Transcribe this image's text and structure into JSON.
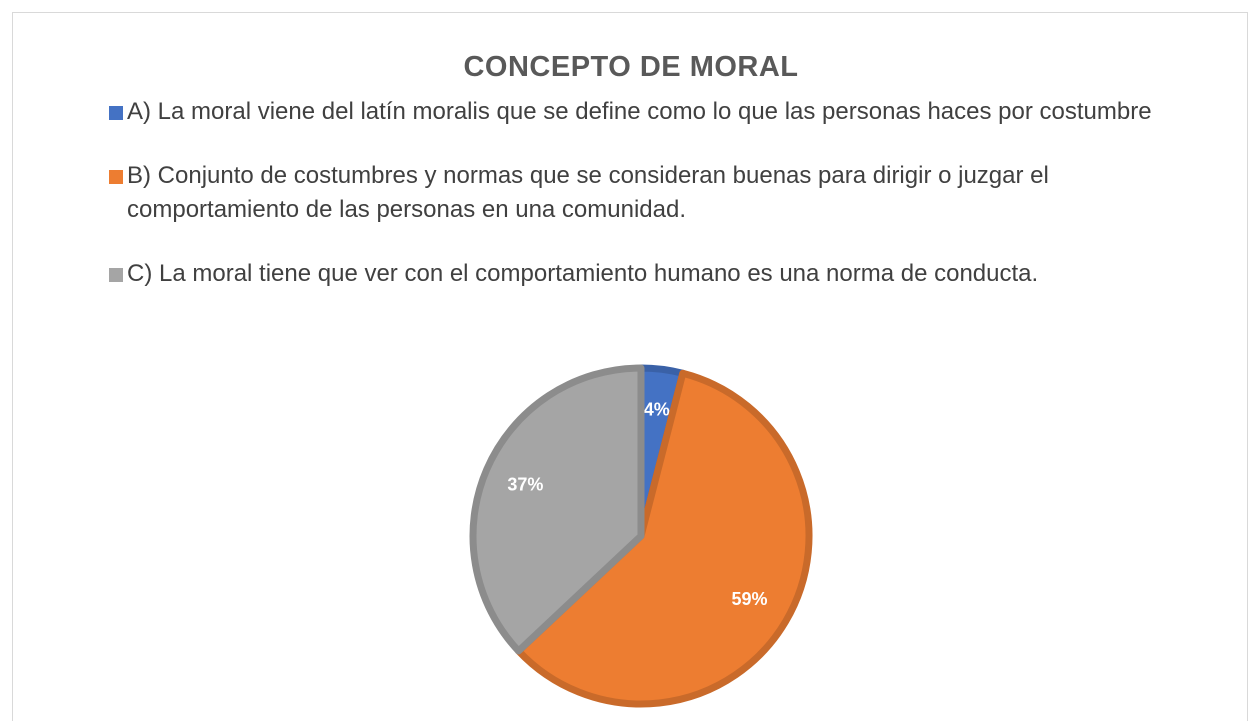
{
  "chart_data": {
    "type": "pie",
    "title": "CONCEPTO DE MORAL",
    "categories": [
      "A) La moral viene del latín moralis  que se define como lo que las personas haces por costumbre",
      "B) Conjunto de costumbres y normas que se consideran buenas para dirigir o juzgar el comportamiento de las personas en una comunidad.",
      "C) La moral tiene que ver con el comportamiento humano  es una norma de conducta."
    ],
    "values": [
      4,
      59,
      37
    ],
    "value_labels": [
      "4%",
      "59%",
      "37%"
    ],
    "colors": [
      "#4472c4",
      "#ed7d31",
      "#a5a5a5"
    ],
    "legend": "top"
  }
}
